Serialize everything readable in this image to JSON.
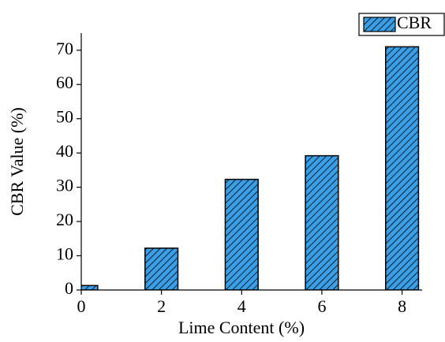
{
  "chart_data": {
    "type": "bar",
    "xlabel": "Lime Content (%)",
    "ylabel": "CBR Value (%)",
    "x": [
      0,
      2,
      4,
      6,
      8
    ],
    "series": [
      {
        "name": "CBR",
        "color": "#3a9fe6",
        "values": [
          1.3,
          12.2,
          32.3,
          39.2,
          71
        ]
      }
    ],
    "xlim": [
      0,
      8.5
    ],
    "xticks": [
      0,
      2,
      4,
      6,
      8
    ],
    "ylim": [
      0,
      75
    ],
    "yticks": [
      0,
      10,
      20,
      30,
      40,
      50,
      60,
      70
    ],
    "hatch": "diagonal",
    "legend": "top-right"
  }
}
